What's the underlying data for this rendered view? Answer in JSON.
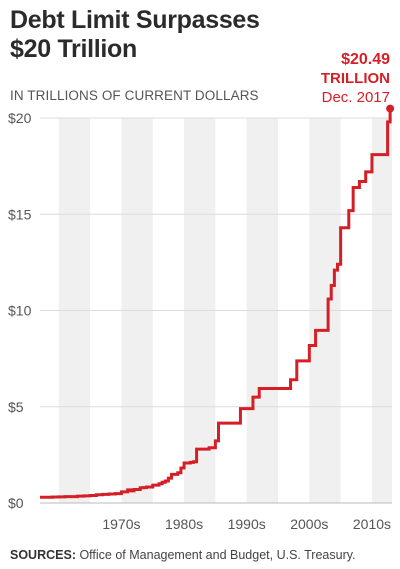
{
  "title_line1": "Debt Limit Surpasses",
  "title_line2": "$20 Trillion",
  "subtitle": "IN TRILLIONS OF CURRENT DOLLARS",
  "callout": {
    "value": "$20.49",
    "unit": "TRILLION",
    "date": "Dec. 2017"
  },
  "source": {
    "label": "SOURCES:",
    "text": " Office of Management and Budget, U.S. Treasury."
  },
  "colors": {
    "line": "#d51f26",
    "band": "#f0f0f0",
    "grid": "#dcdcdc"
  },
  "chart_data": {
    "type": "line",
    "title": "Debt Limit Surpasses $20 Trillion",
    "ylabel": "IN TRILLIONS OF CURRENT DOLLARS",
    "xlim": [
      1962,
      2018.2
    ],
    "ylim": [
      0,
      20
    ],
    "y_ticks": [
      0,
      5,
      10,
      15,
      20
    ],
    "y_tick_labels": [
      "$0",
      "$5",
      "$10",
      "$15",
      "$20"
    ],
    "x_ticks": [
      1970,
      1980,
      1990,
      2000,
      2010
    ],
    "x_tick_labels": [
      "1970s",
      "1980s",
      "1990s",
      "2000s",
      "2010s"
    ],
    "shaded_decades": [
      [
        1965,
        1970
      ],
      [
        1975,
        1980
      ],
      [
        1985,
        1990
      ],
      [
        1995,
        2000
      ],
      [
        2005,
        2010
      ],
      [
        2015,
        2018.2
      ]
    ],
    "grid": true,
    "series": [
      {
        "x": [
          1962,
          1963,
          1964,
          1965,
          1966,
          1967,
          1968,
          1969,
          1970,
          1971,
          1972,
          1973,
          1974,
          1975,
          1975.5,
          1976,
          1976.5,
          1977,
          1978,
          1978.5,
          1979,
          1980,
          1980.5,
          1981,
          1981.5,
          1982,
          1982.5,
          1983,
          1983.5,
          1984,
          1984.5,
          1985,
          1986,
          1986.5,
          1987,
          1988,
          1989,
          1990,
          1990.5,
          1991,
          1992,
          1993,
          1994,
          1995,
          1996,
          1997,
          1998,
          1999,
          2000,
          2001,
          2002,
          2002.5,
          2003,
          2004,
          2005,
          2006,
          2007,
          2008,
          2008.5,
          2009,
          2009.5,
          2010,
          2011,
          2011.3,
          2011.7,
          2012,
          2012.5,
          2013,
          2013.5,
          2014,
          2014.5,
          2015,
          2016,
          2017,
          2017.5,
          2017.9
        ],
        "y": [
          0.3,
          0.3,
          0.31,
          0.32,
          0.33,
          0.33,
          0.36,
          0.37,
          0.39,
          0.43,
          0.45,
          0.47,
          0.49,
          0.58,
          0.58,
          0.68,
          0.63,
          0.7,
          0.79,
          0.8,
          0.83,
          0.93,
          0.93,
          1.0,
          1.08,
          1.14,
          1.29,
          1.49,
          1.49,
          1.57,
          1.82,
          2.08,
          2.11,
          2.14,
          2.8,
          2.8,
          2.87,
          3.23,
          4.15,
          4.15,
          4.15,
          4.15,
          4.9,
          4.9,
          5.5,
          5.95,
          5.95,
          5.95,
          5.95,
          5.95,
          6.4,
          6.4,
          7.38,
          7.38,
          8.18,
          8.97,
          8.97,
          10.6,
          11.3,
          12.1,
          12.4,
          14.3,
          14.3,
          15.19,
          15.19,
          16.39,
          16.39,
          16.7,
          16.7,
          17.2,
          17.2,
          18.1,
          18.1,
          18.1,
          19.8,
          20.49
        ]
      }
    ]
  }
}
